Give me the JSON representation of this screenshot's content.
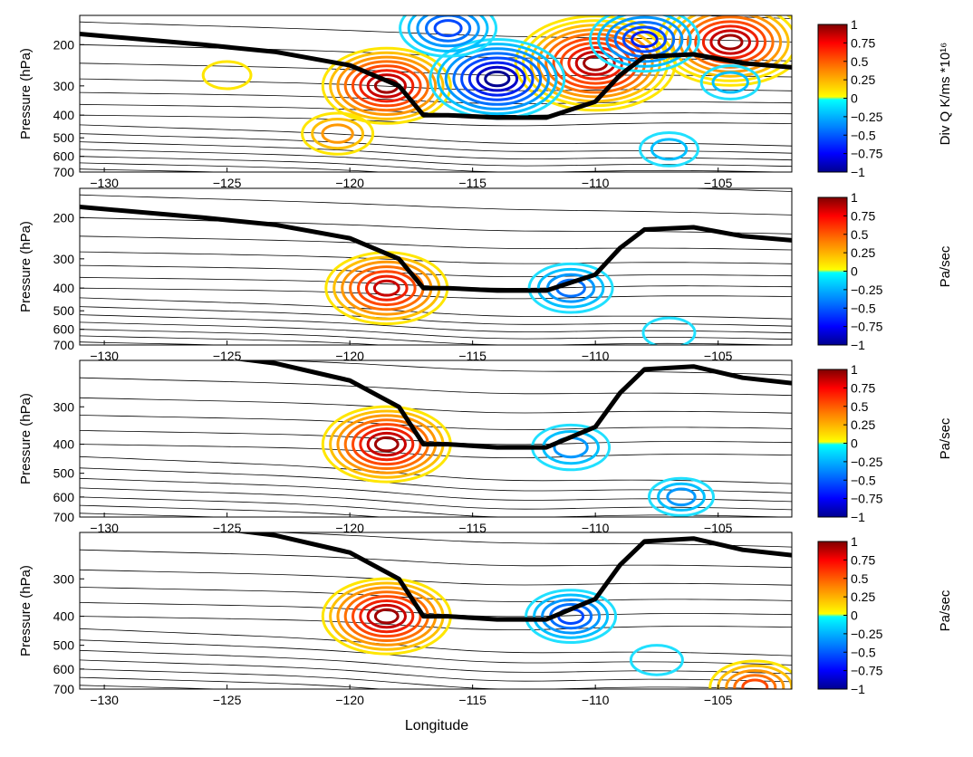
{
  "figure": {
    "xlabel": "Longitude",
    "ylabel": "Pressure (hPa)",
    "xticks": [
      "−130",
      "−125",
      "−120",
      "−115",
      "−110",
      "−105"
    ]
  },
  "colorbar": {
    "tick_labels": [
      "1",
      "0.75",
      "0.5",
      "0.25",
      "0",
      "−0.25",
      "−0.5",
      "−0.75",
      "−1"
    ],
    "colors": [
      "#00008f",
      "#0000ff",
      "#007fff",
      "#00ffff",
      "#ffff00",
      "#ff7f00",
      "#ff0000",
      "#7f0000"
    ]
  },
  "chart_data": [
    {
      "type": "heatmap",
      "xlim": [
        -131,
        -102
      ],
      "ylim_hpa": [
        700,
        150
      ],
      "xticks": [
        -130,
        -125,
        -120,
        -115,
        -110,
        -105
      ],
      "yticks": [
        200,
        300,
        400,
        500,
        600,
        700
      ],
      "ylabel": "Pressure (hPa)",
      "colorbar_label": "Div Q K/ms *10¹⁶",
      "clim": [
        -1,
        1
      ],
      "tropopause": [
        [
          -131,
          180
        ],
        [
          -126,
          200
        ],
        [
          -123,
          215
        ],
        [
          -120,
          245
        ],
        [
          -118,
          300
        ],
        [
          -117,
          400
        ],
        [
          -116,
          400
        ],
        [
          -114,
          410
        ],
        [
          -112,
          410
        ],
        [
          -110,
          350
        ],
        [
          -109,
          270
        ],
        [
          -108,
          225
        ],
        [
          -106,
          220
        ],
        [
          -104,
          240
        ],
        [
          -102,
          250
        ]
      ],
      "positive_centers": [
        {
          "lon": -118.5,
          "p": 300,
          "amp": 0.75
        },
        {
          "lon": -120.5,
          "p": 480,
          "amp": 0.3
        },
        {
          "lon": -110,
          "p": 240,
          "amp": 1.0
        },
        {
          "lon": -104.5,
          "p": 195,
          "amp": 0.9
        },
        {
          "lon": -125,
          "p": 270,
          "amp": 0.12
        }
      ],
      "negative_centers": [
        {
          "lon": -114,
          "p": 280,
          "amp": -0.8
        },
        {
          "lon": -108,
          "p": 190,
          "amp": -0.6
        },
        {
          "lon": -116,
          "p": 170,
          "amp": -0.5
        },
        {
          "lon": -107,
          "p": 560,
          "amp": -0.2
        },
        {
          "lon": -104.5,
          "p": 290,
          "amp": -0.2
        }
      ]
    },
    {
      "type": "heatmap",
      "xlim": [
        -131,
        -102
      ],
      "ylim_hpa": [
        700,
        150
      ],
      "xticks": [
        -130,
        -125,
        -120,
        -115,
        -110,
        -105
      ],
      "yticks": [
        200,
        300,
        400,
        500,
        600,
        700
      ],
      "ylabel": "Pressure (hPa)",
      "colorbar_label": "Pa/sec",
      "clim": [
        -1,
        1
      ],
      "tropopause": [
        [
          -131,
          180
        ],
        [
          -126,
          200
        ],
        [
          -123,
          215
        ],
        [
          -120,
          245
        ],
        [
          -118,
          300
        ],
        [
          -117,
          400
        ],
        [
          -116,
          400
        ],
        [
          -114,
          410
        ],
        [
          -112,
          410
        ],
        [
          -110,
          350
        ],
        [
          -109,
          270
        ],
        [
          -108,
          225
        ],
        [
          -106,
          220
        ],
        [
          -104,
          240
        ],
        [
          -102,
          250
        ]
      ],
      "positive_centers": [
        {
          "lon": -118.5,
          "p": 400,
          "amp": 0.7
        }
      ],
      "negative_centers": [
        {
          "lon": -111,
          "p": 400,
          "amp": -0.4
        },
        {
          "lon": -107,
          "p": 620,
          "amp": -0.15
        }
      ]
    },
    {
      "type": "heatmap",
      "xlim": [
        -131,
        -102
      ],
      "ylim_hpa": [
        700,
        210
      ],
      "xticks": [
        -130,
        -125,
        -120,
        -115,
        -110,
        -105
      ],
      "yticks": [
        300,
        400,
        500,
        600,
        700
      ],
      "ylabel": "Pressure (hPa)",
      "colorbar_label": "Pa/sec",
      "clim": [
        -1,
        1
      ],
      "tropopause": [
        [
          -131,
          180
        ],
        [
          -126,
          200
        ],
        [
          -123,
          215
        ],
        [
          -120,
          245
        ],
        [
          -118,
          300
        ],
        [
          -117,
          400
        ],
        [
          -116,
          400
        ],
        [
          -114,
          410
        ],
        [
          -112,
          410
        ],
        [
          -110,
          350
        ],
        [
          -109,
          270
        ],
        [
          -108,
          225
        ],
        [
          -106,
          220
        ],
        [
          -104,
          240
        ],
        [
          -102,
          250
        ]
      ],
      "positive_centers": [
        {
          "lon": -118.5,
          "p": 400,
          "amp": 0.75
        }
      ],
      "negative_centers": [
        {
          "lon": -111,
          "p": 410,
          "amp": -0.35
        },
        {
          "lon": -106.5,
          "p": 600,
          "amp": -0.25
        }
      ]
    },
    {
      "type": "heatmap",
      "xlim": [
        -131,
        -102
      ],
      "ylim_hpa": [
        700,
        210
      ],
      "xticks": [
        -130,
        -125,
        -120,
        -115,
        -110,
        -105
      ],
      "yticks": [
        300,
        400,
        500,
        600,
        700
      ],
      "ylabel": "Pressure (hPa)",
      "xlabel": "Longitude",
      "colorbar_label": "Pa/sec",
      "clim": [
        -1,
        1
      ],
      "tropopause": [
        [
          -131,
          180
        ],
        [
          -126,
          200
        ],
        [
          -123,
          215
        ],
        [
          -120,
          245
        ],
        [
          -118,
          300
        ],
        [
          -117,
          400
        ],
        [
          -116,
          400
        ],
        [
          -114,
          410
        ],
        [
          -112,
          410
        ],
        [
          -110,
          350
        ],
        [
          -109,
          270
        ],
        [
          -108,
          225
        ],
        [
          -106,
          220
        ],
        [
          -104,
          240
        ],
        [
          -102,
          250
        ]
      ],
      "positive_centers": [
        {
          "lon": -118.5,
          "p": 400,
          "amp": 0.75
        },
        {
          "lon": -103.5,
          "p": 690,
          "amp": 0.45
        }
      ],
      "negative_centers": [
        {
          "lon": -111,
          "p": 400,
          "amp": -0.45
        },
        {
          "lon": -107.5,
          "p": 560,
          "amp": -0.15
        }
      ]
    }
  ]
}
